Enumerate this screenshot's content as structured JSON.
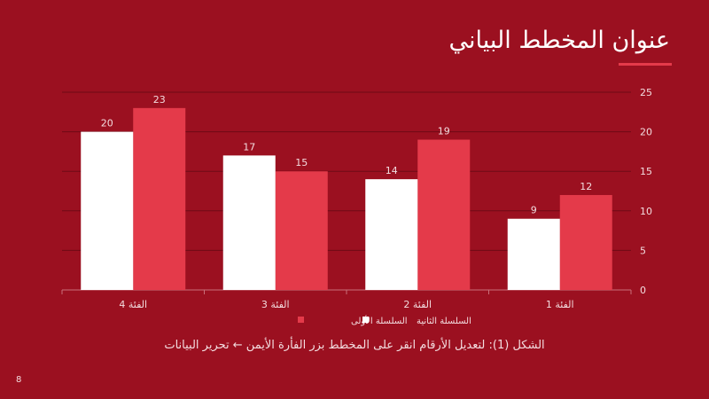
{
  "slide": {
    "title": "عنوان المخطط البياني",
    "caption": "الشكل (1): لتعديل الأرقام انقر على المخطط بزر الفأرة الأيمن ← تحرير البيانات",
    "page_number": "8",
    "colors": {
      "background": "#9b1020",
      "accent": "#e43a4a"
    }
  },
  "chart_data": {
    "type": "bar",
    "categories": [
      "الفئة 1",
      "الفئة 2",
      "الفئة 3",
      "الفئة 4"
    ],
    "series": [
      {
        "name": "السلسلة الأولى",
        "values": [
          12,
          19,
          15,
          23
        ],
        "color": "#e43a4a"
      },
      {
        "name": "السلسلة الثانية",
        "values": [
          9,
          14,
          17,
          20
        ],
        "color": "#ffffff"
      }
    ],
    "ylim": [
      0,
      25
    ],
    "yticks": [
      0,
      5,
      10,
      15,
      20,
      25
    ],
    "y_axis_side": "right",
    "category_order": "right-to-left",
    "grid": true,
    "data_labels": true,
    "legend_position": "bottom"
  }
}
